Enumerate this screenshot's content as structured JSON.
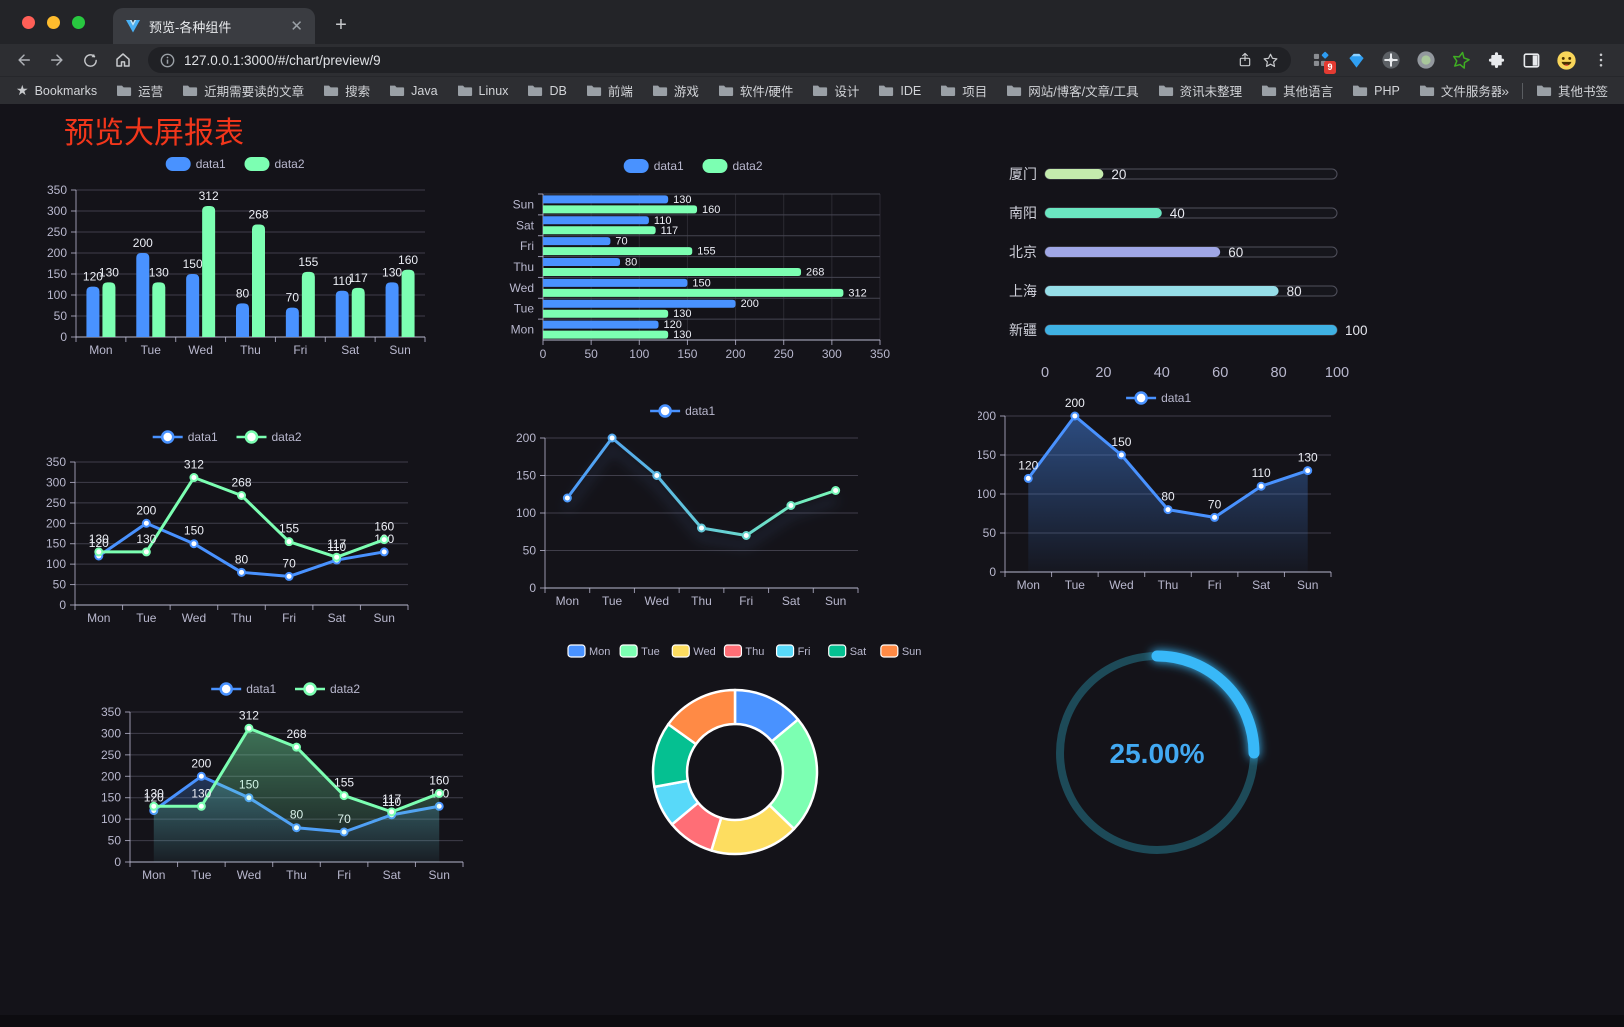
{
  "browser": {
    "tab_title": "预览-各种组件",
    "url": "127.0.0.1:3000/#/chart/preview/9",
    "extension_badge": "9",
    "bookmarks_label": "Bookmarks",
    "bookmarks": [
      "运营",
      "近期需要读的文章",
      "搜索",
      "Java",
      "Linux",
      "DB",
      "前端",
      "游戏",
      "软件/硬件",
      "设计",
      "IDE",
      "项目",
      "网站/博客/文章/工具",
      "资讯未整理",
      "其他语言",
      "PHP",
      "文件服务器"
    ],
    "bookmarks_overflow": "»",
    "other_bookmarks_label": "其他书签"
  },
  "page": {
    "title": "预览大屏报表",
    "title_color": "#f2361b",
    "background_color": "#141319"
  },
  "theme": {
    "axis_label_color": "#b9b8ce",
    "grid_color": "#484753",
    "axis_line_color": "#b9b8ce",
    "value_label_color": "#eceef5",
    "legend_text_color": "#b9b8ce"
  },
  "chart_data": [
    {
      "name": "grouped-vertical-bar",
      "type": "bar",
      "categories": [
        "Mon",
        "Tue",
        "Wed",
        "Thu",
        "Fri",
        "Sat",
        "Sun"
      ],
      "series": [
        {
          "name": "data1",
          "color": "#4992ff",
          "values": [
            120,
            200,
            150,
            80,
            70,
            110,
            130
          ]
        },
        {
          "name": "data2",
          "color": "#7cffb2",
          "values": [
            130,
            130,
            312,
            268,
            155,
            117,
            160
          ]
        }
      ],
      "ylim": [
        0,
        350
      ],
      "ytick": 50,
      "legend_position": "top",
      "show_labels": true,
      "grid": true
    },
    {
      "name": "grouped-horizontal-bar",
      "type": "bar-horizontal",
      "categories": [
        "Mon",
        "Tue",
        "Wed",
        "Thu",
        "Fri",
        "Sat",
        "Sun"
      ],
      "series": [
        {
          "name": "data1",
          "color": "#4992ff",
          "values": [
            120,
            200,
            150,
            80,
            70,
            110,
            130
          ]
        },
        {
          "name": "data2",
          "color": "#7cffb2",
          "values": [
            130,
            130,
            312,
            268,
            155,
            117,
            160
          ]
        }
      ],
      "xlim": [
        0,
        350
      ],
      "xtick": 50,
      "legend_position": "top",
      "show_labels": true,
      "grid": true
    },
    {
      "name": "city-progress-bars",
      "type": "bar-progress",
      "categories": [
        "厦门",
        "南阳",
        "北京",
        "上海",
        "新疆"
      ],
      "values": [
        20,
        40,
        60,
        80,
        100
      ],
      "colors": [
        "#c4ebad",
        "#6be6c1",
        "#a0a7e6",
        "#96dee8",
        "#3fb1e3"
      ],
      "xlim": [
        0,
        100
      ],
      "xtick": 20,
      "show_labels": true,
      "grid": false
    },
    {
      "name": "two-series-line",
      "type": "line",
      "categories": [
        "Mon",
        "Tue",
        "Wed",
        "Thu",
        "Fri",
        "Sat",
        "Sun"
      ],
      "series": [
        {
          "name": "data1",
          "color": "#4992ff",
          "values": [
            120,
            200,
            150,
            80,
            70,
            110,
            130
          ]
        },
        {
          "name": "data2",
          "color": "#7cffb2",
          "values": [
            130,
            130,
            312,
            268,
            155,
            117,
            160
          ]
        }
      ],
      "ylim": [
        0,
        350
      ],
      "ytick": 50,
      "legend_position": "top",
      "show_labels": true,
      "grid": true
    },
    {
      "name": "gradient-line",
      "type": "line",
      "categories": [
        "Mon",
        "Tue",
        "Wed",
        "Thu",
        "Fri",
        "Sat",
        "Sun"
      ],
      "series": [
        {
          "name": "data1",
          "color": "#4992ff",
          "gradient": [
            "#4992ff",
            "#7cffb2"
          ],
          "values": [
            120,
            200,
            150,
            80,
            70,
            110,
            130
          ]
        }
      ],
      "ylim": [
        0,
        200
      ],
      "ytick": 50,
      "legend_position": "top",
      "show_labels": false,
      "shadow": true,
      "grid": true
    },
    {
      "name": "single-series-area",
      "type": "area",
      "categories": [
        "Mon",
        "Tue",
        "Wed",
        "Thu",
        "Fri",
        "Sat",
        "Sun"
      ],
      "series": [
        {
          "name": "data1",
          "color": "#4992ff",
          "values": [
            120,
            200,
            150,
            80,
            70,
            110,
            130
          ]
        }
      ],
      "ylim": [
        0,
        200
      ],
      "ytick": 50,
      "legend_position": "top",
      "show_labels": true,
      "grid": true
    },
    {
      "name": "two-series-area",
      "type": "area",
      "categories": [
        "Mon",
        "Tue",
        "Wed",
        "Thu",
        "Fri",
        "Sat",
        "Sun"
      ],
      "series": [
        {
          "name": "data1",
          "color": "#4992ff",
          "values": [
            120,
            200,
            150,
            80,
            70,
            110,
            130
          ]
        },
        {
          "name": "data2",
          "color": "#7cffb2",
          "values": [
            130,
            130,
            312,
            268,
            155,
            117,
            160
          ]
        }
      ],
      "ylim": [
        0,
        350
      ],
      "ytick": 50,
      "legend_position": "top",
      "show_labels": true,
      "grid": true
    },
    {
      "name": "weekday-donut",
      "type": "pie",
      "categories": [
        "Mon",
        "Tue",
        "Wed",
        "Thu",
        "Fri",
        "Sat",
        "Sun"
      ],
      "values": [
        120,
        200,
        150,
        80,
        70,
        110,
        130
      ],
      "colors": [
        "#4992ff",
        "#7cffb2",
        "#fddd60",
        "#ff6e76",
        "#58d9f9",
        "#05c091",
        "#ff8a45"
      ],
      "inner_radius_ratio": 0.585,
      "legend_position": "top",
      "border_color": "#ffffff"
    },
    {
      "name": "percentage-ring",
      "type": "progress-ring",
      "value": 25,
      "display": "25.00%",
      "color": "#38b8f8",
      "text_color": "#42a9f2",
      "track_color": "#1d4a58"
    }
  ]
}
